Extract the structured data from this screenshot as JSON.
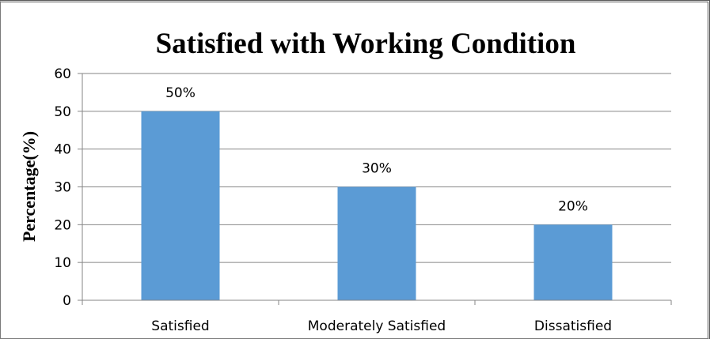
{
  "chart_data": {
    "type": "bar",
    "title": "Satisfied with Working Condition",
    "xlabel": "",
    "ylabel": "Percentage(%)",
    "categories": [
      "Satisfied",
      "Moderately Satisfied",
      "Dissatisfied"
    ],
    "values": [
      50,
      30,
      20
    ],
    "data_labels": [
      "50%",
      "30%",
      "20%"
    ],
    "ylim": [
      0,
      60
    ],
    "yticks": [
      0,
      10,
      20,
      30,
      40,
      50,
      60
    ],
    "grid": true,
    "legend": "none",
    "bar_color": "#5b9bd5",
    "grid_color": "#868686"
  }
}
